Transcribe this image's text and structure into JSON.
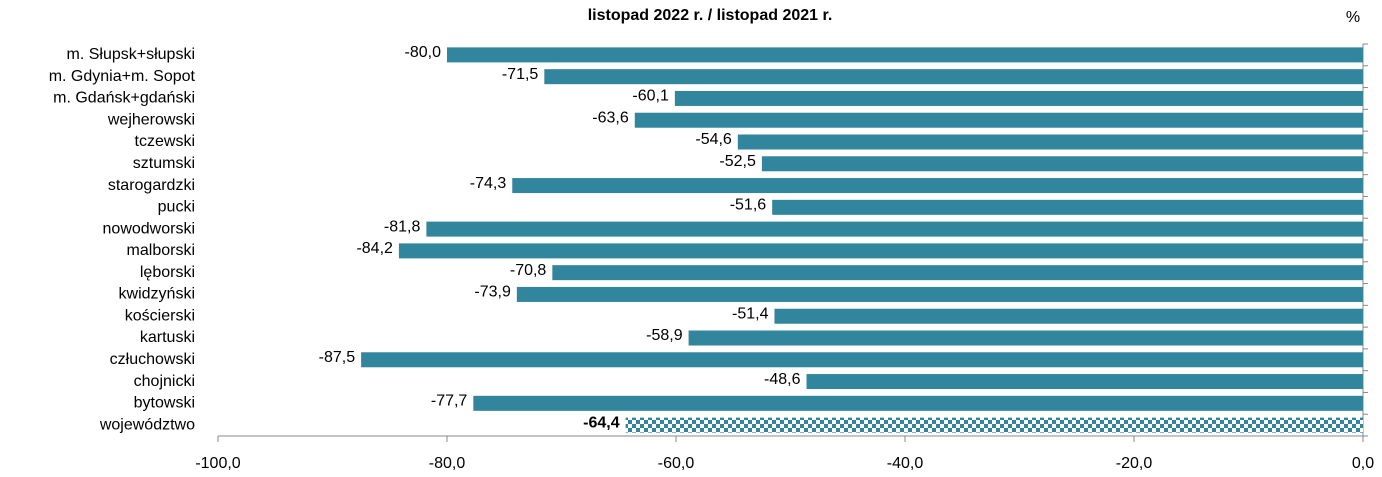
{
  "chart_data": {
    "type": "bar",
    "orientation": "horizontal",
    "title": "listopad 2022 r. / listopad 2021 r.",
    "unit_label": "%",
    "categories": [
      "m. Słupsk+słupski",
      "m. Gdynia+m. Sopot",
      "m. Gdańsk+gdański",
      "wejherowski",
      "tczewski",
      "sztumski",
      "starogardzki",
      "pucki",
      "nowodworski",
      "malborski",
      "lęborski",
      "kwidzyński",
      "kościerski",
      "kartuski",
      "człuchowski",
      "chojnicki",
      "bytowski",
      "województwo"
    ],
    "values": [
      -80.0,
      -71.5,
      -60.1,
      -63.6,
      -54.6,
      -52.5,
      -74.3,
      -51.6,
      -81.8,
      -84.2,
      -70.8,
      -73.9,
      -51.4,
      -58.9,
      -87.5,
      -48.6,
      -77.7,
      -64.4
    ],
    "value_labels": [
      "-80,0",
      "-71,5",
      "-60,1",
      "-63,6",
      "-54,6",
      "-52,5",
      "-74,3",
      "-51,6",
      "-81,8",
      "-84,2",
      "-70,8",
      "-73,9",
      "-51,4",
      "-58,9",
      "-87,5",
      "-48,6",
      "-77,7",
      "-64,4"
    ],
    "color": "#31859c",
    "highlight": {
      "index": 17,
      "pattern": "checker"
    },
    "xlim": [
      -100,
      0
    ],
    "xticks": [
      {
        "value": -100,
        "label": "-100,0"
      },
      {
        "value": -80,
        "label": "-80,0"
      },
      {
        "value": -60,
        "label": "-60,0"
      },
      {
        "value": -40,
        "label": "-40,0"
      },
      {
        "value": -20,
        "label": "-20,0"
      },
      {
        "value": 0,
        "label": "0,0"
      }
    ]
  }
}
